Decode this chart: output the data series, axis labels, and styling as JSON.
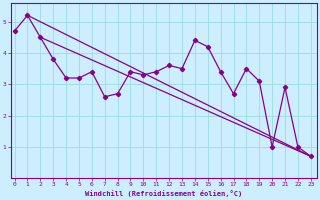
{
  "xlabel": "Windchill (Refroidissement éolien,°C)",
  "bg_color": "#cceeff",
  "line_color": "#880088",
  "grid_color": "#99dddd",
  "x_data": [
    0,
    1,
    2,
    3,
    4,
    5,
    6,
    7,
    8,
    9,
    10,
    11,
    12,
    13,
    14,
    15,
    16,
    17,
    18,
    19,
    20,
    21,
    22,
    23
  ],
  "y_actual": [
    4.7,
    5.2,
    4.5,
    3.8,
    3.2,
    3.2,
    3.4,
    2.6,
    2.7,
    3.4,
    3.3,
    3.4,
    3.6,
    3.5,
    4.4,
    4.2,
    3.4,
    2.7,
    3.5,
    3.1,
    1.0,
    2.9,
    1.0,
    0.7
  ],
  "line1_x": [
    1,
    23
  ],
  "line1_y": [
    5.2,
    0.7
  ],
  "line2_x": [
    2,
    23
  ],
  "line2_y": [
    4.5,
    0.7
  ],
  "xlim": [
    -0.3,
    23.5
  ],
  "ylim": [
    0,
    5.6
  ],
  "yticks": [
    1,
    2,
    3,
    4,
    5
  ],
  "xticks": [
    0,
    1,
    2,
    3,
    4,
    5,
    6,
    7,
    8,
    9,
    10,
    11,
    12,
    13,
    14,
    15,
    16,
    17,
    18,
    19,
    20,
    21,
    22,
    23
  ]
}
